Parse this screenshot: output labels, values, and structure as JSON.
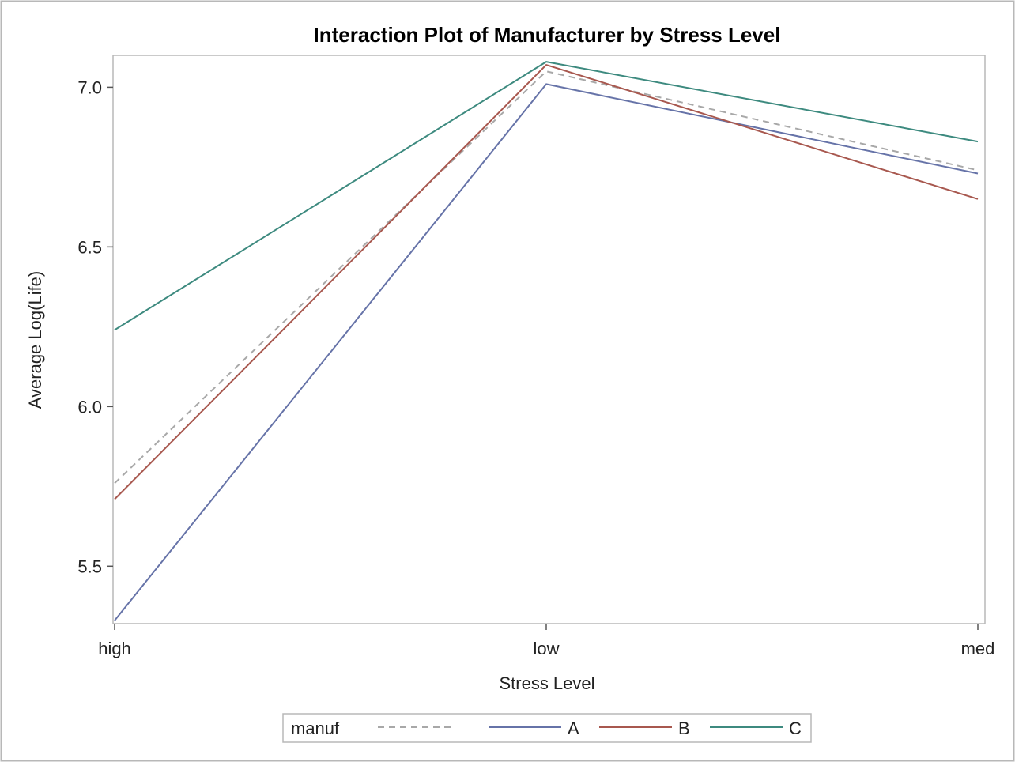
{
  "chart_data": {
    "type": "line",
    "title": "Interaction Plot of Manufacturer by Stress Level",
    "xlabel": "Stress Level",
    "ylabel": "Average Log(Life)",
    "categories": [
      "high",
      "low",
      "med"
    ],
    "ylim": [
      5.32,
      7.1
    ],
    "yticks": [
      "5.5",
      "6.0",
      "6.5",
      "7.0"
    ],
    "grid": false,
    "legend": {
      "title": "manuf",
      "position": "bottom-center",
      "entries": [
        "",
        "A",
        "B",
        "C"
      ]
    },
    "series": [
      {
        "name": "",
        "values": [
          5.76,
          7.05,
          6.74
        ],
        "color": "#a8a8a8",
        "dashed": true
      },
      {
        "name": "A",
        "values": [
          5.33,
          7.01,
          6.73
        ],
        "color": "#6673a8",
        "dashed": false
      },
      {
        "name": "B",
        "values": [
          5.71,
          7.07,
          6.65
        ],
        "color": "#a8584f",
        "dashed": false
      },
      {
        "name": "C",
        "values": [
          6.24,
          7.08,
          6.83
        ],
        "color": "#3d8a7f",
        "dashed": false
      }
    ]
  }
}
